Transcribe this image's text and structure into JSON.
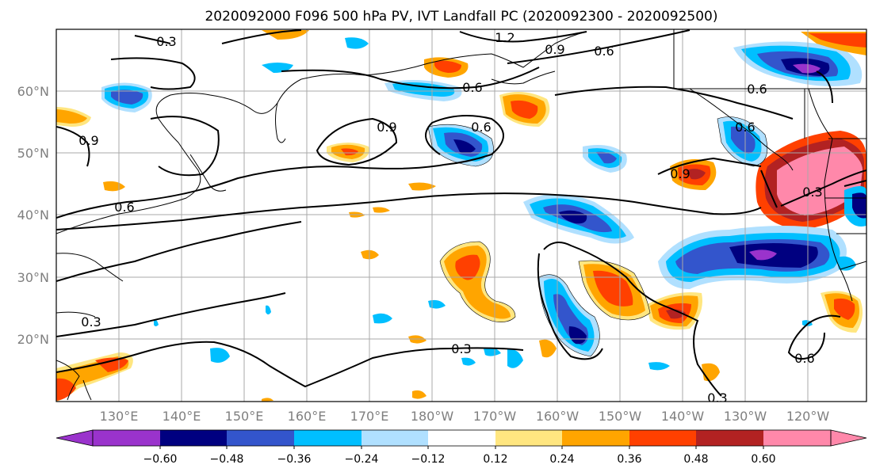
{
  "title": "2020092000 F096 500 hPa PV, IVT Landfall PC (2020092300 - 2020092500)",
  "map": {
    "lon_labels": [
      "130°E",
      "140°E",
      "150°E",
      "160°E",
      "170°E",
      "180°W",
      "170°W",
      "160°W",
      "150°W",
      "140°W",
      "130°W",
      "120°W"
    ],
    "lat_labels": [
      "60°N",
      "50°N",
      "40°N",
      "30°N",
      "20°N"
    ],
    "gridlines": true
  },
  "contour_labels": [
    "0.3",
    "1.2",
    "0.9",
    "0.6",
    "0.6",
    "0.9",
    "0.6",
    "0.9",
    "0.6",
    "0.9",
    "0.6",
    "0.6",
    "0.3",
    "0.3",
    "0.3",
    "0.3",
    "0.6"
  ],
  "colorbar": {
    "tick_labels": [
      "−0.60",
      "−0.48",
      "−0.36",
      "−0.24",
      "−0.12",
      "0.12",
      "0.24",
      "0.36",
      "0.48",
      "0.60"
    ],
    "colors": [
      "#9a33cc",
      "#000080",
      "#3355cc",
      "#00bfff",
      "#b0e0ff",
      "#ffffff",
      "#ffe680",
      "#ffa500",
      "#ff4000",
      "#b22222",
      "#ff88aa"
    ],
    "extend": "both"
  }
}
